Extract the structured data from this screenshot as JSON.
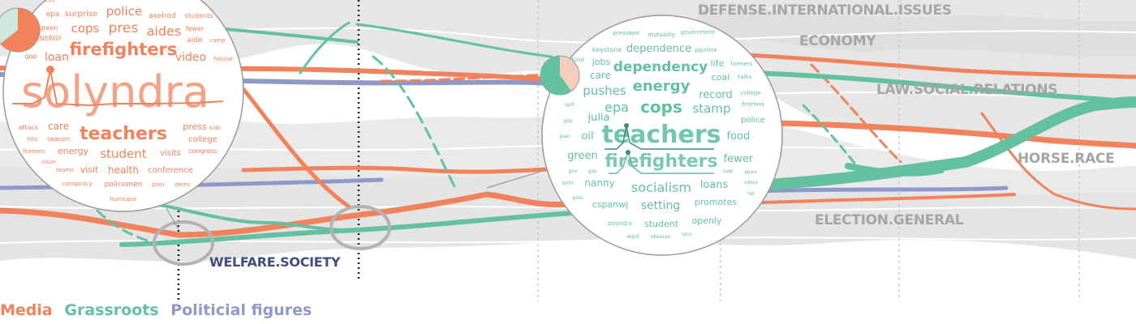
{
  "colors": {
    "media": "#f1825c",
    "grassroots": "#64c1a0",
    "political": "#8f99c9",
    "stream": "#e6e6e6",
    "stream_dark": "#dcdcdc",
    "topic_label": "#a5a5a5",
    "welfare_label": "#3f4f7f"
  },
  "legend": {
    "media": "Media",
    "grassroots": "Grassroots",
    "political": "Politicial figures"
  },
  "topics": {
    "defense": "DEFENSE.INTERNATIONAL.ISSUES",
    "economy": "ECONOMY",
    "law": "LAW.SOCIAL.RELATIONS",
    "horse": "HORSE.RACE",
    "election": "ELECTION.GENERAL",
    "welfare": "WELFARE.SOCIETY"
  },
  "wordcloud_left": {
    "pie": {
      "media_share": 0.72
    },
    "words": [
      "preparedness",
      "epa",
      "surprise",
      "police",
      "axelrod",
      "students",
      "green",
      "cops",
      "pres",
      "aides",
      "fewer",
      "ENERGY",
      "firefighters",
      "aide",
      "camp",
      "gop",
      "loan",
      "video",
      "house",
      "solyndra",
      "attack",
      "care",
      "hits",
      "season",
      "teachers",
      "press",
      "kids",
      "college",
      "firemen",
      "energy",
      "student",
      "visits",
      "congress",
      "issue",
      "teams",
      "visit",
      "health",
      "conference",
      "conspiracy",
      "policemen",
      "plan",
      "dems",
      "hurricane"
    ]
  },
  "wordcloud_right": {
    "pie": {
      "grassroots_share": 0.6
    },
    "words": [
      "president",
      "mutuality",
      "government",
      "keystone",
      "dependence",
      "pipeline",
      "fund",
      "jobs",
      "life",
      "farmers",
      "care",
      "dependency",
      "coal",
      "talks",
      "pushes",
      "energy",
      "record",
      "college",
      "epa",
      "cops",
      "stamp",
      "firemen",
      "julia",
      "police",
      "spill",
      "teachers",
      "food",
      "plan",
      "oil",
      "green",
      "firefighters",
      "fewer",
      "gov",
      "gas",
      "saw",
      "spies",
      "birth",
      "nanny",
      "socialism",
      "loans",
      "video",
      "pres",
      "cspanwj",
      "setting",
      "promotes",
      "tel",
      "solyndra",
      "student",
      "openly",
      "ward",
      "obsesse",
      "race"
    ]
  }
}
